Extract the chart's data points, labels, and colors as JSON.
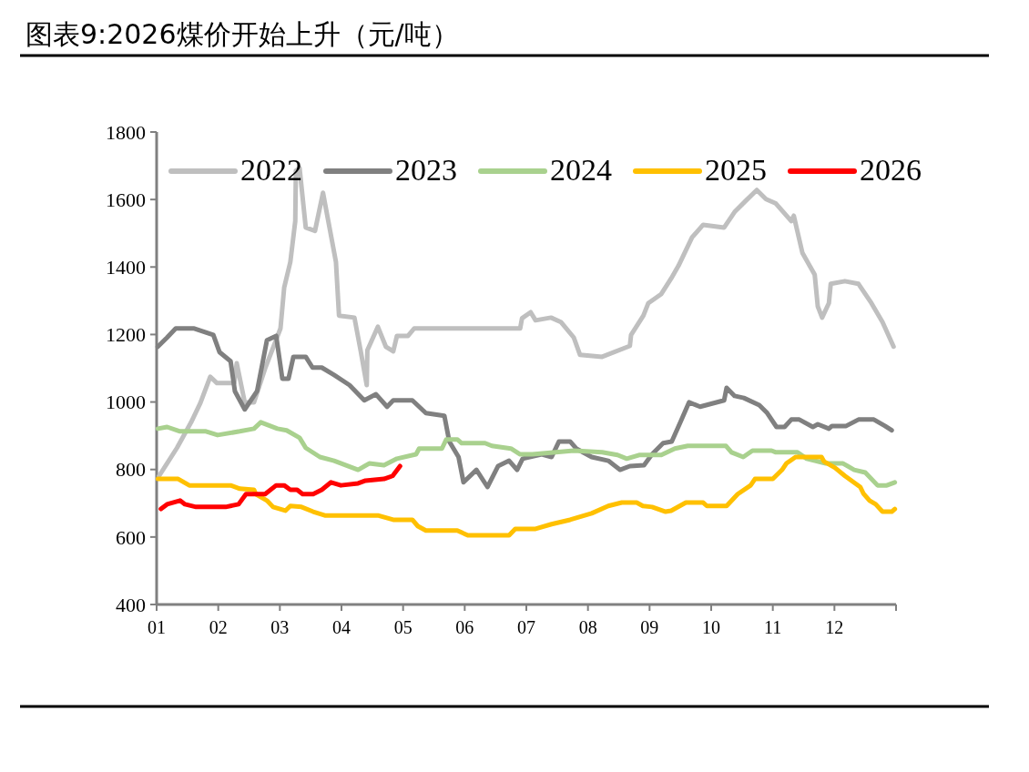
{
  "chart_data": {
    "type": "line",
    "title": "图表9:2026煤价开始上升（元/吨）",
    "legend": "top",
    "xlim": [
      1,
      13
    ],
    "xticks": [
      {
        "value": 1,
        "label": "01"
      },
      {
        "value": 2,
        "label": "02"
      },
      {
        "value": 3,
        "label": "03"
      },
      {
        "value": 4,
        "label": "04"
      },
      {
        "value": 5,
        "label": "05"
      },
      {
        "value": 6,
        "label": "06"
      },
      {
        "value": 7,
        "label": "07"
      },
      {
        "value": 8,
        "label": "08"
      },
      {
        "value": 9,
        "label": "09"
      },
      {
        "value": 10,
        "label": "10"
      },
      {
        "value": 11,
        "label": "11"
      },
      {
        "value": 12,
        "label": "12"
      },
      {
        "value": 13,
        "label": null
      }
    ],
    "ylim": [
      400,
      1800
    ],
    "yticks": [
      400,
      600,
      800,
      1000,
      1200,
      1400,
      1600,
      1800
    ],
    "series": [
      {
        "name": "2022",
        "color": "#bfbfbf",
        "x": [
          1.04,
          1.33,
          1.56,
          1.71,
          1.87,
          1.98,
          2.26,
          2.3,
          2.43,
          2.58,
          2.76,
          3.01,
          3.07,
          3.17,
          3.25,
          3.26,
          3.32,
          3.42,
          3.57,
          3.7,
          3.91,
          3.96,
          4.21,
          4.31,
          4.41,
          4.42,
          4.59,
          4.72,
          4.84,
          4.9,
          5.08,
          5.18,
          6.9,
          6.93,
          7.07,
          7.15,
          7.4,
          7.56,
          7.77,
          7.87,
          8.23,
          8.68,
          8.7,
          8.9,
          8.98,
          9.19,
          9.35,
          9.47,
          9.69,
          9.87,
          10.21,
          10.38,
          10.56,
          10.74,
          10.89,
          11.05,
          11.3,
          11.34,
          11.48,
          11.68,
          11.73,
          11.8,
          11.91,
          11.94,
          12.17,
          12.39,
          12.6,
          12.78,
          12.96
        ],
        "values": [
          781,
          864,
          940,
          997,
          1075,
          1056,
          1056,
          1115,
          999,
          999,
          1099,
          1218,
          1339,
          1415,
          1536,
          1685,
          1693,
          1517,
          1507,
          1620,
          1415,
          1256,
          1250,
          1153,
          1050,
          1153,
          1223,
          1164,
          1150,
          1196,
          1196,
          1218,
          1218,
          1248,
          1266,
          1242,
          1250,
          1237,
          1191,
          1140,
          1134,
          1166,
          1199,
          1256,
          1293,
          1320,
          1366,
          1404,
          1488,
          1525,
          1517,
          1563,
          1596,
          1628,
          1601,
          1588,
          1536,
          1552,
          1442,
          1377,
          1283,
          1250,
          1293,
          1350,
          1358,
          1350,
          1293,
          1237,
          1164
        ]
      },
      {
        "name": "2023",
        "color": "#808080",
        "x": [
          1.02,
          1.17,
          1.31,
          1.61,
          1.92,
          2.02,
          2.2,
          2.27,
          2.43,
          2.63,
          2.79,
          2.94,
          3.04,
          3.14,
          3.22,
          3.42,
          3.53,
          3.68,
          3.88,
          4.13,
          4.37,
          4.56,
          4.74,
          4.84,
          5.15,
          5.37,
          5.67,
          5.75,
          5.9,
          5.98,
          6.19,
          6.37,
          6.54,
          6.72,
          6.85,
          6.94,
          7.25,
          7.41,
          7.53,
          7.71,
          7.81,
          8.06,
          8.33,
          8.52,
          8.68,
          8.91,
          9.04,
          9.22,
          9.36,
          9.5,
          9.64,
          9.82,
          10.21,
          10.25,
          10.38,
          10.53,
          10.78,
          10.91,
          11.06,
          11.19,
          11.3,
          11.43,
          11.65,
          11.73,
          11.91,
          11.96,
          12.19,
          12.39,
          12.64,
          12.82,
          12.93
        ],
        "values": [
          1164,
          1191,
          1218,
          1218,
          1199,
          1148,
          1121,
          1032,
          978,
          1032,
          1183,
          1196,
          1069,
          1069,
          1134,
          1134,
          1102,
          1102,
          1080,
          1050,
          1005,
          1023,
          986,
          1005,
          1005,
          967,
          959,
          883,
          837,
          762,
          799,
          748,
          810,
          826,
          799,
          832,
          845,
          837,
          883,
          883,
          862,
          837,
          826,
          799,
          810,
          813,
          845,
          878,
          883,
          940,
          999,
          986,
          1005,
          1042,
          1018,
          1012,
          991,
          967,
          926,
          926,
          948,
          948,
          926,
          934,
          921,
          929,
          929,
          948,
          948,
          929,
          916
        ]
      },
      {
        "name": "2024",
        "color": "#a9d18e",
        "x": [
          1.02,
          1.17,
          1.38,
          1.8,
          1.99,
          2.35,
          2.58,
          2.69,
          2.96,
          3.11,
          3.32,
          3.42,
          3.65,
          3.88,
          4.27,
          4.45,
          4.69,
          4.9,
          5.21,
          5.26,
          5.63,
          5.7,
          5.88,
          5.95,
          6.33,
          6.44,
          6.75,
          6.9,
          7.1,
          7.77,
          8.23,
          8.48,
          8.63,
          8.83,
          9.19,
          9.41,
          9.62,
          10.24,
          10.33,
          10.52,
          10.67,
          10.98,
          11.05,
          11.4,
          11.55,
          11.86,
          12.14,
          12.32,
          12.5,
          12.7,
          12.85,
          12.98
        ],
        "values": [
          921,
          926,
          913,
          913,
          902,
          913,
          921,
          940,
          921,
          916,
          894,
          864,
          837,
          826,
          799,
          818,
          813,
          832,
          845,
          862,
          862,
          889,
          889,
          878,
          878,
          870,
          862,
          845,
          845,
          856,
          851,
          843,
          832,
          843,
          843,
          862,
          870,
          870,
          851,
          837,
          856,
          856,
          851,
          851,
          832,
          818,
          818,
          799,
          791,
          753,
          753,
          762
        ]
      },
      {
        "name": "2025",
        "color": "#ffc000",
        "x": [
          1.02,
          1.35,
          1.53,
          2.2,
          2.35,
          2.58,
          2.61,
          2.79,
          2.89,
          3.09,
          3.17,
          3.35,
          3.54,
          3.73,
          4.59,
          4.84,
          5.15,
          5.24,
          5.37,
          5.88,
          6.05,
          6.72,
          6.82,
          7.15,
          7.41,
          7.71,
          8.06,
          8.33,
          8.55,
          8.79,
          8.89,
          9.04,
          9.26,
          9.35,
          9.59,
          9.87,
          9.93,
          10.25,
          10.43,
          10.64,
          10.71,
          11.0,
          11.15,
          11.22,
          11.37,
          11.79,
          11.83,
          12.01,
          12.17,
          12.42,
          12.47,
          12.57,
          12.67,
          12.78,
          12.93,
          12.98
        ],
        "values": [
          772,
          772,
          753,
          753,
          743,
          740,
          727,
          708,
          689,
          678,
          692,
          689,
          675,
          664,
          664,
          651,
          651,
          632,
          619,
          619,
          605,
          605,
          624,
          624,
          638,
          651,
          670,
          692,
          702,
          702,
          692,
          689,
          675,
          678,
          702,
          702,
          692,
          692,
          727,
          753,
          772,
          772,
          799,
          818,
          837,
          837,
          824,
          805,
          781,
          748,
          729,
          708,
          697,
          675,
          675,
          683
        ]
      },
      {
        "name": "2026",
        "color": "#ff0000",
        "x": [
          1.07,
          1.17,
          1.38,
          1.46,
          1.64,
          2.12,
          2.33,
          2.45,
          2.76,
          2.94,
          3.07,
          3.17,
          3.28,
          3.37,
          3.54,
          3.68,
          3.83,
          3.99,
          4.27,
          4.39,
          4.69,
          4.83,
          4.95
        ],
        "values": [
          683,
          697,
          708,
          697,
          689,
          689,
          697,
          727,
          727,
          753,
          753,
          740,
          740,
          727,
          727,
          740,
          762,
          753,
          759,
          767,
          772,
          781,
          810
        ]
      }
    ]
  }
}
